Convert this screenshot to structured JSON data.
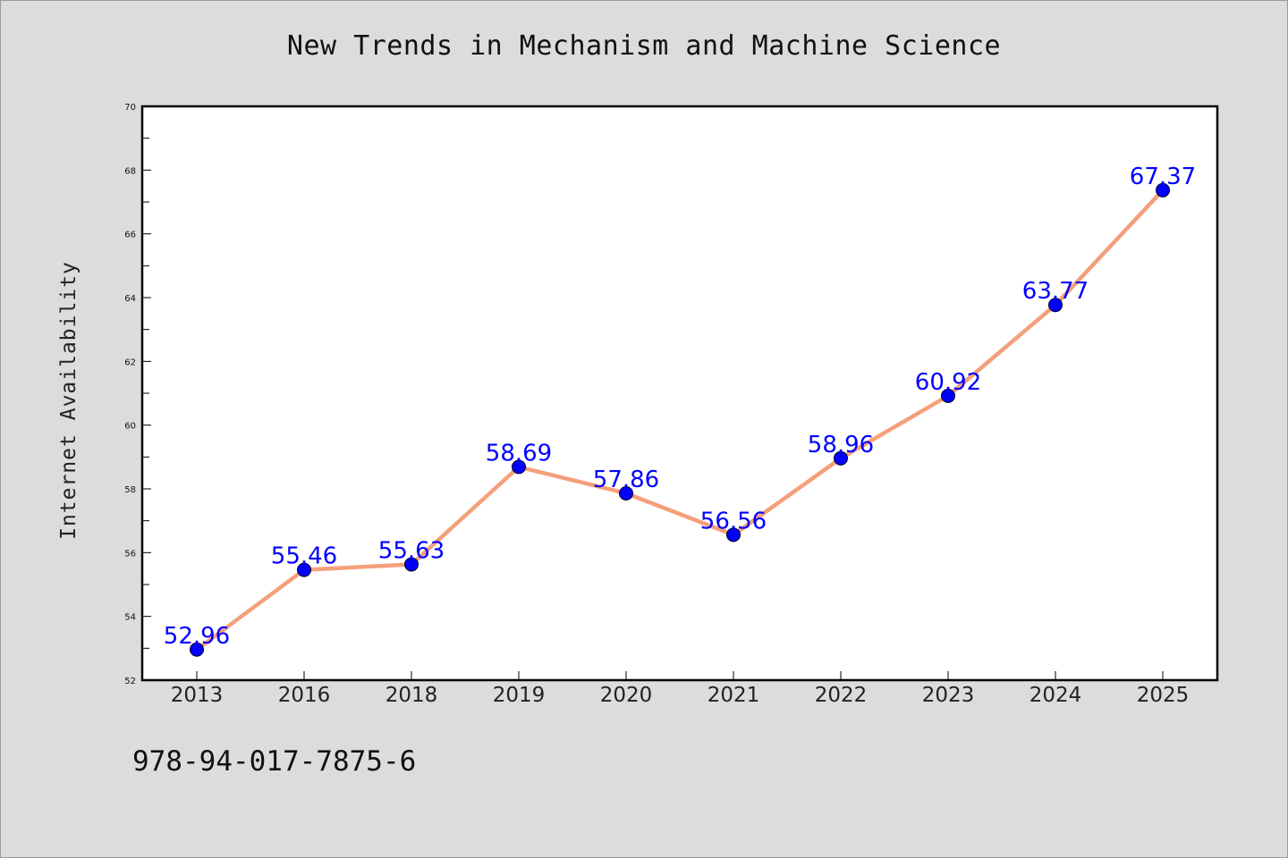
{
  "chart_data": {
    "type": "line",
    "title": "New Trends in Mechanism and Machine Science",
    "ylabel": "Internet Availability",
    "xlabel": "",
    "categories": [
      "2013",
      "2016",
      "2018",
      "2019",
      "2020",
      "2021",
      "2022",
      "2023",
      "2024",
      "2025"
    ],
    "series": [
      {
        "values": [
          52.96,
          55.46,
          55.63,
          58.69,
          57.86,
          56.56,
          58.96,
          60.92,
          63.77,
          67.37
        ],
        "line_color": "#f4a07a",
        "marker_color": "#0000ff",
        "label_color": "#0000ff"
      }
    ],
    "ylim": [
      52,
      70
    ],
    "yticks": [
      52,
      54,
      56,
      58,
      60,
      62,
      64,
      66,
      68,
      70
    ],
    "grid": false,
    "legend": "none",
    "footnote": "978-94-017-7875-6"
  },
  "colors": {
    "background": "#dcdcdc",
    "plot_area": "#ffffff",
    "axis": "#000000"
  }
}
